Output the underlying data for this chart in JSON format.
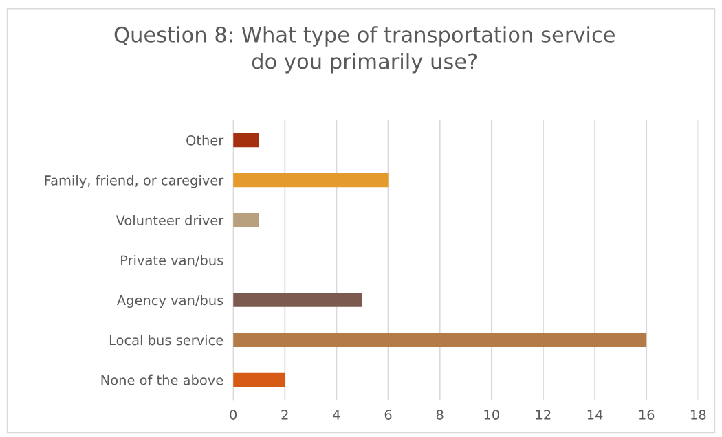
{
  "chart_data": {
    "type": "bar",
    "orientation": "horizontal",
    "title": "Question 8: What type of transportation service\ndo you primarily use?",
    "categories": [
      "Other",
      "Family, friend, or caregiver",
      "Volunteer driver",
      "Private van/bus",
      "Agency van/bus",
      "Local bus service",
      "None of the above"
    ],
    "values": [
      1,
      6,
      1,
      0,
      5,
      16,
      2
    ],
    "colors": [
      "#a5300f",
      "#e59b2b",
      "#b8a07e",
      "#8c8c8c",
      "#7b5b4f",
      "#b27b48",
      "#d55b17"
    ],
    "xlim": [
      0,
      18
    ],
    "xticks": [
      0,
      2,
      4,
      6,
      8,
      10,
      12,
      14,
      16,
      18
    ],
    "grid": "x",
    "legend": false
  }
}
